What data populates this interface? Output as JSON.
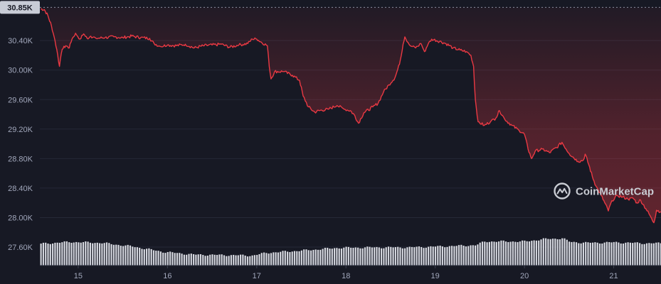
{
  "chart_data": {
    "type": "area",
    "title": "",
    "xlabel": "",
    "ylabel": "",
    "ylim": [
      27350,
      30950
    ],
    "yticks": [
      "30.40K",
      "30.00K",
      "29.60K",
      "29.20K",
      "28.80K",
      "28.40K",
      "28.00K",
      "27.60K"
    ],
    "ytick_values": [
      30400,
      30000,
      29600,
      29200,
      28800,
      28400,
      28000,
      27600
    ],
    "xlim": [
      14.57,
      21.53
    ],
    "xticks": [
      "15",
      "16",
      "17",
      "18",
      "19",
      "20",
      "21"
    ],
    "xtick_values": [
      15,
      16,
      17,
      18,
      19,
      20,
      21
    ],
    "current_price_label": "30.85K",
    "current_price_value": 30850,
    "watermark": "CoinMarketCap",
    "colors": {
      "background": "#171924",
      "line": "#ea3943",
      "grid": "#252937",
      "axis_text": "#a1a7bb",
      "volume": "#d2d4dc",
      "price_box": "#c8ccd6"
    },
    "grid": true,
    "series": [
      {
        "values": [
          [
            14.58,
            30830
          ],
          [
            14.62,
            30820
          ],
          [
            14.66,
            30740
          ],
          [
            14.7,
            30600
          ],
          [
            14.73,
            30450
          ],
          [
            14.76,
            30280
          ],
          [
            14.79,
            30050
          ],
          [
            14.82,
            30280
          ],
          [
            14.86,
            30330
          ],
          [
            14.9,
            30300
          ],
          [
            14.93,
            30420
          ],
          [
            14.97,
            30500
          ],
          [
            15.02,
            30420
          ],
          [
            15.06,
            30490
          ],
          [
            15.1,
            30430
          ],
          [
            15.14,
            30460
          ],
          [
            15.2,
            30430
          ],
          [
            15.3,
            30440
          ],
          [
            15.4,
            30450
          ],
          [
            15.5,
            30440
          ],
          [
            15.6,
            30460
          ],
          [
            15.7,
            30440
          ],
          [
            15.8,
            30430
          ],
          [
            15.85,
            30360
          ],
          [
            15.92,
            30320
          ],
          [
            16.0,
            30340
          ],
          [
            16.1,
            30330
          ],
          [
            16.2,
            30350
          ],
          [
            16.3,
            30300
          ],
          [
            16.4,
            30330
          ],
          [
            16.5,
            30340
          ],
          [
            16.6,
            30350
          ],
          [
            16.7,
            30310
          ],
          [
            16.8,
            30340
          ],
          [
            16.9,
            30360
          ],
          [
            16.95,
            30420
          ],
          [
            17.0,
            30420
          ],
          [
            17.05,
            30380
          ],
          [
            17.12,
            30330
          ],
          [
            17.14,
            30050
          ],
          [
            17.16,
            29880
          ],
          [
            17.2,
            29980
          ],
          [
            17.3,
            29980
          ],
          [
            17.4,
            29930
          ],
          [
            17.48,
            29860
          ],
          [
            17.52,
            29650
          ],
          [
            17.58,
            29500
          ],
          [
            17.65,
            29430
          ],
          [
            17.7,
            29450
          ],
          [
            17.8,
            29470
          ],
          [
            17.9,
            29520
          ],
          [
            17.98,
            29470
          ],
          [
            18.05,
            29450
          ],
          [
            18.1,
            29380
          ],
          [
            18.14,
            29280
          ],
          [
            18.2,
            29420
          ],
          [
            18.3,
            29500
          ],
          [
            18.36,
            29550
          ],
          [
            18.42,
            29700
          ],
          [
            18.48,
            29800
          ],
          [
            18.55,
            29900
          ],
          [
            18.6,
            30080
          ],
          [
            18.64,
            30350
          ],
          [
            18.66,
            30450
          ],
          [
            18.72,
            30330
          ],
          [
            18.78,
            30300
          ],
          [
            18.84,
            30360
          ],
          [
            18.88,
            30250
          ],
          [
            18.92,
            30350
          ],
          [
            18.96,
            30420
          ],
          [
            19.05,
            30390
          ],
          [
            19.12,
            30360
          ],
          [
            19.2,
            30300
          ],
          [
            19.28,
            30270
          ],
          [
            19.35,
            30250
          ],
          [
            19.4,
            30200
          ],
          [
            19.43,
            30050
          ],
          [
            19.45,
            29600
          ],
          [
            19.48,
            29300
          ],
          [
            19.55,
            29250
          ],
          [
            19.62,
            29300
          ],
          [
            19.68,
            29350
          ],
          [
            19.72,
            29450
          ],
          [
            19.78,
            29330
          ],
          [
            19.86,
            29250
          ],
          [
            19.94,
            29180
          ],
          [
            20.0,
            29130
          ],
          [
            20.04,
            28930
          ],
          [
            20.08,
            28800
          ],
          [
            20.12,
            28900
          ],
          [
            20.2,
            28930
          ],
          [
            20.28,
            28880
          ],
          [
            20.36,
            28950
          ],
          [
            20.42,
            29020
          ],
          [
            20.5,
            28870
          ],
          [
            20.6,
            28760
          ],
          [
            20.66,
            28780
          ],
          [
            20.68,
            28860
          ],
          [
            20.72,
            28720
          ],
          [
            20.76,
            28560
          ],
          [
            20.8,
            28430
          ],
          [
            20.86,
            28300
          ],
          [
            20.9,
            28200
          ],
          [
            20.94,
            28090
          ],
          [
            20.98,
            28230
          ],
          [
            21.04,
            28300
          ],
          [
            21.1,
            28280
          ],
          [
            21.16,
            28250
          ],
          [
            21.22,
            28260
          ],
          [
            21.26,
            28200
          ],
          [
            21.3,
            28240
          ],
          [
            21.36,
            28120
          ],
          [
            21.42,
            28000
          ],
          [
            21.45,
            27930
          ],
          [
            21.48,
            28100
          ],
          [
            21.53,
            28080
          ]
        ]
      }
    ],
    "volume_levels": [
      [
        14.57,
        0.48
      ],
      [
        14.9,
        0.52
      ],
      [
        15.25,
        0.5
      ],
      [
        15.6,
        0.42
      ],
      [
        15.95,
        0.3
      ],
      [
        16.3,
        0.24
      ],
      [
        16.65,
        0.23
      ],
      [
        16.95,
        0.22
      ],
      [
        17.1,
        0.28
      ],
      [
        17.5,
        0.33
      ],
      [
        17.9,
        0.39
      ],
      [
        18.3,
        0.4
      ],
      [
        18.7,
        0.4
      ],
      [
        19.2,
        0.43
      ],
      [
        19.45,
        0.45
      ],
      [
        19.55,
        0.53
      ],
      [
        20.0,
        0.53
      ],
      [
        20.2,
        0.58
      ],
      [
        20.42,
        0.6
      ],
      [
        20.5,
        0.52
      ],
      [
        20.7,
        0.5
      ],
      [
        21.0,
        0.51
      ],
      [
        21.35,
        0.49
      ],
      [
        21.53,
        0.49
      ]
    ]
  }
}
